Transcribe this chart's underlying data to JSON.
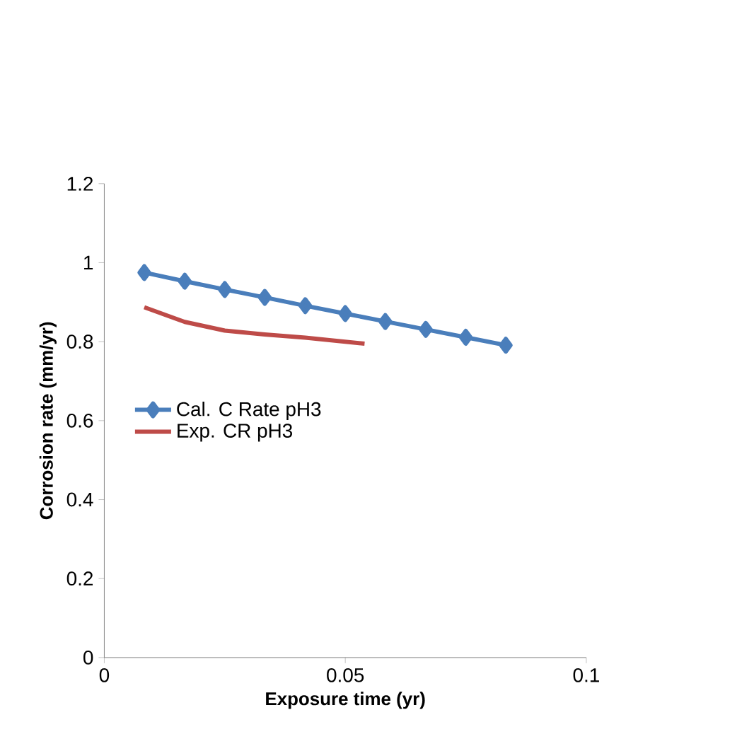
{
  "chart_data": {
    "type": "line",
    "xlabel": "Exposure time (yr)",
    "ylabel": "Corrosion rate (mm/yr)",
    "xlim": [
      0,
      0.1
    ],
    "xticks": [
      0,
      0.05,
      0.1
    ],
    "ylim": [
      0,
      1.2
    ],
    "yticks": [
      0,
      0.2,
      0.4,
      0.6,
      0.8,
      1,
      1.2
    ],
    "grid": false,
    "legend": "left",
    "series": [
      {
        "name": "Cal. C  Rate pH3",
        "color": "#4a7ebb",
        "marker": "diamond",
        "x": [
          0.0083,
          0.0167,
          0.025,
          0.0333,
          0.0417,
          0.05,
          0.0583,
          0.0667,
          0.075,
          0.0833
        ],
        "values": [
          0.975,
          0.953,
          0.932,
          0.912,
          0.891,
          0.871,
          0.851,
          0.831,
          0.811,
          0.791
        ]
      },
      {
        "name": "Exp. CR pH3",
        "color": "#be4b48",
        "marker": "none",
        "x": [
          0.0083,
          0.0167,
          0.025,
          0.0333,
          0.0417,
          0.054
        ],
        "values": [
          0.887,
          0.85,
          0.828,
          0.818,
          0.81,
          0.795
        ]
      }
    ]
  }
}
